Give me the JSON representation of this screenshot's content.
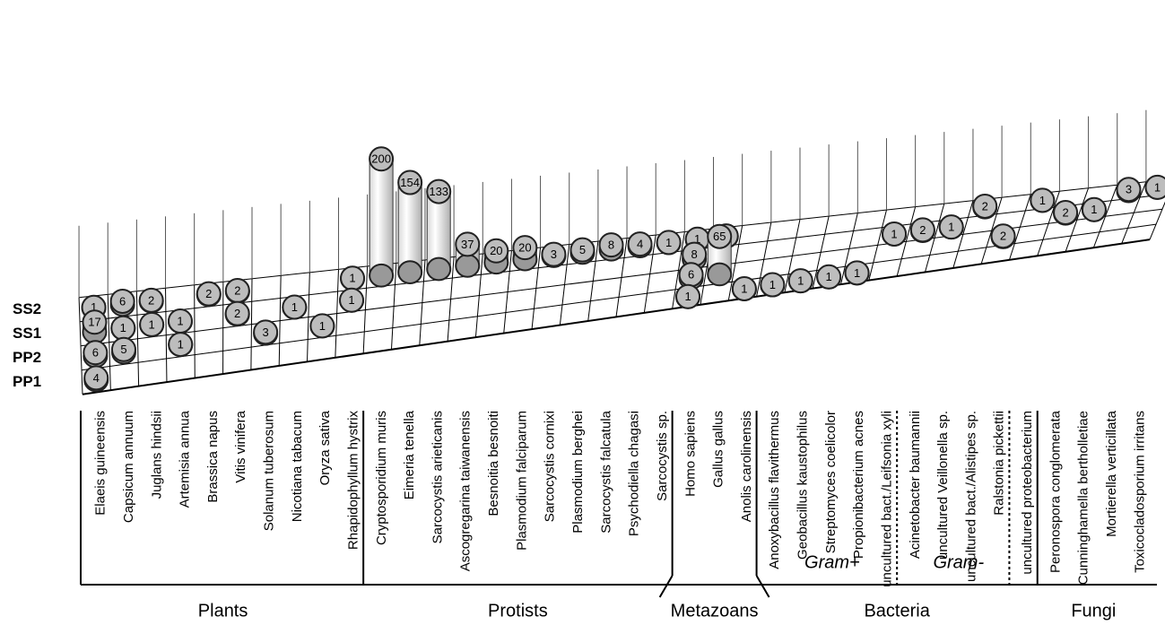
{
  "chart_data": {
    "type": "bar3d",
    "rows": [
      "PP1",
      "PP2",
      "SS1",
      "SS2"
    ],
    "groups": [
      {
        "label": "Plants",
        "subgroups": [
          {
            "categories": [
              {
                "name": "Elaeis guineensis",
                "values": [
                  4,
                  6,
                  17,
                  1
                ]
              },
              {
                "name": "Capsicum annuum",
                "values": [
                  null,
                  5,
                  1,
                  6
                ]
              },
              {
                "name": "Juglans hindsii",
                "values": [
                  null,
                  null,
                  1,
                  2
                ]
              },
              {
                "name": "Artemisia annua",
                "values": [
                  null,
                  1,
                  1,
                  null
                ]
              },
              {
                "name": "Brassica napus",
                "values": [
                  null,
                  null,
                  null,
                  2
                ]
              },
              {
                "name": "Vitis vinifera",
                "values": [
                  null,
                  null,
                  2,
                  2
                ]
              },
              {
                "name": "Solanum tuberosum",
                "values": [
                  null,
                  3,
                  null,
                  null
                ]
              },
              {
                "name": "Nicotiana tabacum",
                "values": [
                  null,
                  null,
                  1,
                  null
                ]
              },
              {
                "name": "Oryza sativa",
                "values": [
                  null,
                  1,
                  null,
                  null
                ]
              },
              {
                "name": "Rhapidophyllum hystrix",
                "values": [
                  null,
                  null,
                  1,
                  1
                ]
              }
            ]
          }
        ]
      },
      {
        "label": "Protists",
        "subgroups": [
          {
            "categories": [
              {
                "name": "Cryptosporidium muris",
                "values": [
                  null,
                  null,
                  null,
                  200
                ]
              },
              {
                "name": "Eimeria tenella",
                "values": [
                  null,
                  null,
                  null,
                  154
                ]
              },
              {
                "name": "Sarcocystis arieticanis",
                "values": [
                  null,
                  null,
                  null,
                  133
                ]
              },
              {
                "name": "Ascogregarina taiwanensis",
                "values": [
                  null,
                  null,
                  null,
                  37
                ]
              },
              {
                "name": "Besnoitia besnoiti",
                "values": [
                  null,
                  null,
                  null,
                  20
                ]
              },
              {
                "name": "Plasmodium falciparum",
                "values": [
                  null,
                  null,
                  null,
                  20
                ]
              },
              {
                "name": "Sarcocystis cornixi",
                "values": [
                  null,
                  null,
                  null,
                  3
                ]
              },
              {
                "name": "Plasmodium berghei",
                "values": [
                  null,
                  null,
                  null,
                  5
                ]
              },
              {
                "name": "Sarcocystis falcatula",
                "values": [
                  null,
                  null,
                  null,
                  8
                ]
              },
              {
                "name": "Psychodiella chagasi",
                "values": [
                  null,
                  null,
                  null,
                  4
                ]
              },
              {
                "name": "Sarcocystis sp.",
                "values": [
                  null,
                  null,
                  null,
                  1
                ]
              }
            ]
          }
        ]
      },
      {
        "label": "Metazoans",
        "subgroups": [
          {
            "categories": [
              {
                "name": "Homo sapiens",
                "values": [
                  1,
                  6,
                  8,
                  1
                ]
              },
              {
                "name": "Gallus gallus",
                "values": [
                  null,
                  65,
                  null,
                  1
                ]
              },
              {
                "name": "Anolis carolinensis",
                "values": [
                  1,
                  null,
                  null,
                  null
                ]
              }
            ]
          }
        ]
      },
      {
        "label": "Bacteria",
        "subgroups": [
          {
            "label": "Gram+",
            "categories": [
              {
                "name": "Anoxybacillus flavithermus",
                "values": [
                  1,
                  null,
                  null,
                  null
                ]
              },
              {
                "name": "Geobacillus kaustophilus",
                "values": [
                  1,
                  null,
                  null,
                  null
                ]
              },
              {
                "name": "Streptomyces coelicolor",
                "values": [
                  1,
                  null,
                  null,
                  null
                ]
              },
              {
                "name": "Propionibacterium acnes",
                "values": [
                  1,
                  null,
                  null,
                  null
                ]
              },
              {
                "name": "uncultured bact./Leifsonia xyli",
                "values": [
                  null,
                  null,
                  1,
                  null
                ]
              }
            ]
          },
          {
            "label": "Gram-",
            "categories": [
              {
                "name": "Acinetobacter baumannii",
                "values": [
                  null,
                  null,
                  2,
                  null
                ]
              },
              {
                "name": "uncultured Veillonella sp.",
                "values": [
                  null,
                  null,
                  1,
                  null
                ]
              },
              {
                "name": "uncultured bact./Alistipes sp.",
                "values": [
                  null,
                  null,
                  null,
                  2
                ]
              },
              {
                "name": "Ralstonia pickettii",
                "values": [
                  null,
                  2,
                  null,
                  null
                ]
              }
            ]
          },
          {
            "categories": [
              {
                "name": "uncultured proteobacterium",
                "values": [
                  null,
                  null,
                  null,
                  1
                ]
              }
            ]
          }
        ]
      },
      {
        "label": "Fungi",
        "subgroups": [
          {
            "categories": [
              {
                "name": "Peronospora conglomerata",
                "values": [
                  null,
                  null,
                  2,
                  null
                ]
              },
              {
                "name": "Cunninghamella bertholletiae",
                "values": [
                  null,
                  null,
                  1,
                  null
                ]
              },
              {
                "name": "Mortierella verticillata",
                "values": [
                  null,
                  null,
                  null,
                  3
                ]
              },
              {
                "name": "Toxicocladosporium irritans",
                "values": [
                  null,
                  null,
                  null,
                  1
                ]
              }
            ]
          }
        ]
      }
    ]
  }
}
